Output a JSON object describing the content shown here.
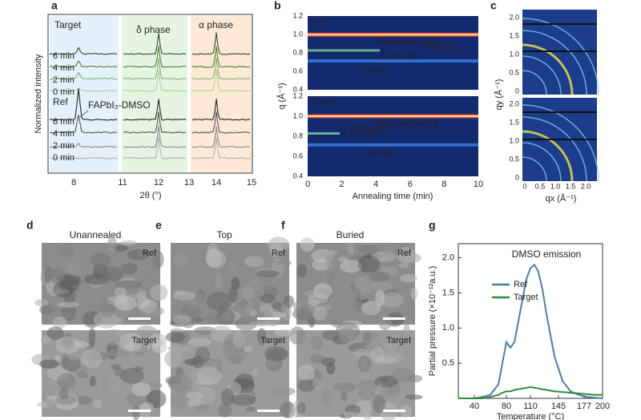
{
  "figure": {
    "a": {
      "label": "a",
      "ylabel": "Normalized intensity",
      "xlabel": "2θ (°)",
      "xticks": [
        "8",
        "11",
        "12",
        "13",
        "14",
        "15"
      ],
      "target": "Target",
      "delta": "δ phase",
      "alpha": "α phase",
      "target_times": [
        "6 min",
        "4 min",
        "2 min",
        "0 min"
      ],
      "ref": "Ref",
      "ref_times": [
        "6 min",
        "4 min",
        "2 min",
        "0 min"
      ],
      "intermediate": "FAPbI₃-DMSO"
    },
    "b": {
      "label": "b",
      "ylabel": "q (Å⁻¹)",
      "xlabel": "Annealing time (min)",
      "yticks": [
        "0.4",
        "0.6",
        "0.8",
        "1.0",
        "1.2"
      ],
      "xticks": [
        "0",
        "2",
        "4",
        "6",
        "8",
        "10"
      ],
      "top": {
        "name": "Ref",
        "perovskite": "Perovskite(100)",
        "d6h": "δ-6H(101)",
        "d2h": "δ-2H(100)",
        "rb": "RbPbI₃"
      },
      "bottom": {
        "name": "Target",
        "perovskite": "Perovskite(100)",
        "d6h": "δ-6H(101)",
        "d2h": "δ-2H(100)",
        "rb": "RbPbI₃"
      }
    },
    "c": {
      "label": "c",
      "ylabel": "qy (Å⁻¹)",
      "xlabel": "qx (Å⁻¹)",
      "yticks": [
        "0",
        "0.5",
        "1.0",
        "1.5",
        "2.0"
      ],
      "xticks": [
        "0",
        "0.5",
        "1.0",
        "1.5",
        "2.0"
      ]
    },
    "d": {
      "label": "d",
      "title": "Unannealed",
      "top": "Ref",
      "bottom": "Target"
    },
    "e": {
      "label": "e",
      "title": "Top",
      "top": "Ref",
      "bottom": "Target"
    },
    "f": {
      "label": "f",
      "title": "Buried",
      "top": "Ref",
      "bottom": "Target"
    }
  },
  "chart_data": {
    "type": "line",
    "label": "g",
    "title": "DMSO emission",
    "x_label": "Temperature (°C)",
    "y_label": "Partial pressure (×10⁻¹²a.u.)",
    "x": [
      20,
      30,
      40,
      50,
      60,
      70,
      75,
      80,
      85,
      90,
      95,
      100,
      105,
      110,
      115,
      120,
      125,
      130,
      140,
      150,
      160,
      170,
      180,
      190,
      200
    ],
    "series": [
      {
        "name": "Ref",
        "color": "#4f7ba8",
        "values": [
          0,
          0,
          0,
          0.02,
          0.05,
          0.2,
          0.5,
          0.8,
          0.72,
          0.8,
          1.1,
          1.4,
          1.7,
          1.85,
          1.9,
          1.8,
          1.55,
          1.2,
          0.6,
          0.25,
          0.1,
          0.05,
          0.02,
          0.01,
          0
        ]
      },
      {
        "name": "Target",
        "color": "#2e8b3a",
        "values": [
          0,
          0,
          0,
          0,
          0.02,
          0.05,
          0.08,
          0.1,
          0.1,
          0.12,
          0.13,
          0.14,
          0.15,
          0.16,
          0.15,
          0.14,
          0.13,
          0.12,
          0.1,
          0.09,
          0.08,
          0.07,
          0.06,
          0.05,
          0.05
        ]
      }
    ],
    "xlim": [
      20,
      200
    ],
    "xticks": [
      40,
      80,
      110,
      145,
      177,
      200
    ],
    "ylim": [
      0,
      2.2
    ],
    "yticks": [
      {
        "value": 0.5,
        "label": "0.5"
      },
      {
        "value": 1,
        "label": "1.0"
      },
      {
        "value": 1.5,
        "label": "1.5"
      },
      {
        "value": 2,
        "label": "2.0"
      }
    ],
    "legend": "upper-left"
  }
}
